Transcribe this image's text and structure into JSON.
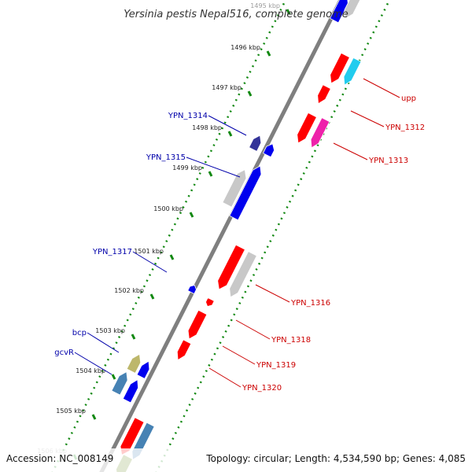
{
  "title": "Yersinia pestis Nepal516, complete genome",
  "accession": "Accession: NC_008149",
  "summary": "Topology: circular; Length: 4,534,590 bp; Genes: 4,085",
  "ticks": [
    "1495 kbp",
    "1496 kbp",
    "1497 kbp",
    "1498 kbp",
    "1499 kbp",
    "1500 kbp",
    "1501 kbp",
    "1502 kbp",
    "1503 kbp",
    "1504 kbp",
    "1505 kbp",
    "1506 kbp"
  ],
  "labels_left": [
    "YPN_1314",
    "YPN_1315",
    "YPN_1317",
    "bcp",
    "gcvR"
  ],
  "labels_right": [
    "upp",
    "YPN_1312",
    "YPN_1313",
    "YPN_1316",
    "YPN_1318",
    "YPN_1319",
    "YPN_1320"
  ],
  "colors": {
    "backbone": "#7f7f7f",
    "forward_gene": "#ff0000",
    "reverse_gene": "#0000ee",
    "pseudo_gene": "#c8c8c8",
    "cyan_gene": "#22ccee",
    "magenta_gene": "#ee22aa",
    "navy_gene": "#333399",
    "khaki_gene": "#bdb76b",
    "steel_gene": "#4682b4",
    "olive_gene": "#6b8e23",
    "gc_dots": "#118811",
    "left_label": "#0000aa",
    "right_label": "#cc0000"
  }
}
